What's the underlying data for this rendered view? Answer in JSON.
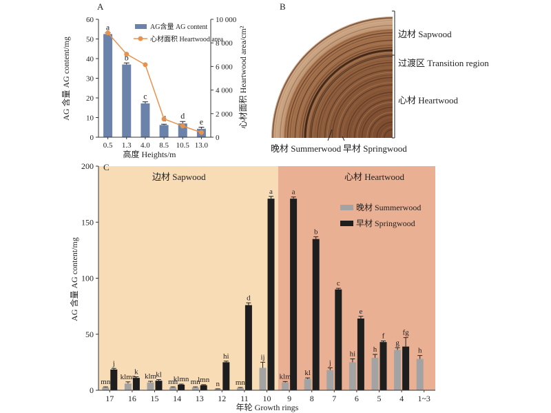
{
  "panel_labels": {
    "a": "A",
    "b": "B",
    "c": "C"
  },
  "chart_data": [
    {
      "type": "bar",
      "title": "",
      "xlabel": "高度 Heights/m",
      "ylabel": "AG 含量 AG content/mg",
      "y2label": "心材面积 Heartwood area/cm²",
      "categories": [
        "0.5",
        "1.3",
        "4.0",
        "8.5",
        "10.5",
        "13.0"
      ],
      "ylim": [
        0,
        60
      ],
      "yticks": [
        0,
        10,
        20,
        30,
        40,
        50,
        60
      ],
      "y2lim": [
        0,
        10000
      ],
      "y2ticks": [
        "0",
        "2 000",
        "4 000",
        "6 000",
        "8 000",
        "10 000"
      ],
      "series": [
        {
          "name": "AG含量 AG content",
          "kind": "bar",
          "color": "#6b82aa",
          "values": [
            52.5,
            37,
            17.2,
            6.2,
            7,
            4.3
          ],
          "errors": [
            0.6,
            0.8,
            0.8,
            0.4,
            1.0,
            0.8
          ]
        },
        {
          "name": "心材面积 Heartwood area",
          "kind": "line",
          "axis": "right",
          "color": "#e8924d",
          "values": [
            8850,
            7050,
            6150,
            1550,
            950,
            400
          ]
        }
      ],
      "letters": [
        "a",
        "b",
        "c",
        "d",
        "d",
        "e"
      ],
      "legend": "top-right"
    },
    {
      "type": "bar",
      "title": "",
      "xlabel": "年轮 Growth rings",
      "ylabel": "AG 含量 AG content/mg",
      "categories": [
        "17",
        "16",
        "15",
        "14",
        "13",
        "12",
        "11",
        "10",
        "9",
        "8",
        "7",
        "6",
        "5",
        "4",
        "1~3"
      ],
      "ylim": [
        0,
        200
      ],
      "yticks": [
        0,
        50,
        100,
        150,
        200
      ],
      "regions": [
        {
          "label": "边材 Sapwood",
          "from": "17",
          "to": "10",
          "color": "#f8dcb6"
        },
        {
          "label": "心材 Heartwood",
          "from": "9",
          "to": "1~3",
          "color": "#eab094"
        }
      ],
      "series": [
        {
          "name": "晚材 Summerwood",
          "color": "#a3a3a3",
          "values": [
            2.5,
            6,
            7,
            2.5,
            2.5,
            1,
            2,
            20,
            7,
            10,
            18,
            25,
            29,
            36,
            28
          ],
          "errors": [
            0.5,
            1.5,
            1,
            0.5,
            0.5,
            0.3,
            0.5,
            5,
            0.8,
            1,
            2,
            3,
            3,
            2,
            3
          ],
          "letters": [
            "mn",
            "klmn",
            "klm",
            "mn",
            "mn",
            "n",
            "mn",
            "ij",
            "klm",
            "kl",
            "j",
            "hi",
            "h",
            "g",
            "h"
          ]
        },
        {
          "name": "早材 Springwood",
          "color": "#1e1e1e",
          "values": [
            18.5,
            11,
            8.5,
            5,
            4.5,
            25,
            76,
            171,
            171,
            135,
            90,
            64,
            43,
            39,
            null
          ],
          "errors": [
            1,
            1,
            1,
            0.5,
            0.5,
            1,
            2,
            2,
            1.5,
            2,
            1,
            2,
            1,
            8,
            null
          ],
          "letters": [
            "j",
            "k",
            "kl",
            "klmn",
            "lmn",
            "hi",
            "d",
            "a",
            "a",
            "b",
            "c",
            "e",
            "f",
            "fg",
            null
          ]
        }
      ],
      "legend": "right, inside heartwood region"
    }
  ],
  "wood_section": {
    "annotations": {
      "sapwood": "边材 Sapwood",
      "transition": "过渡区 Transition region",
      "heartwood": "心材 Heartwood",
      "summerwood": "晚材 Summerwood",
      "springwood": "早材 Springwood"
    },
    "colors": {
      "outer": "#d4ad8a",
      "inner": "#8c5b3b",
      "dark_ring": "#3a2418"
    }
  }
}
